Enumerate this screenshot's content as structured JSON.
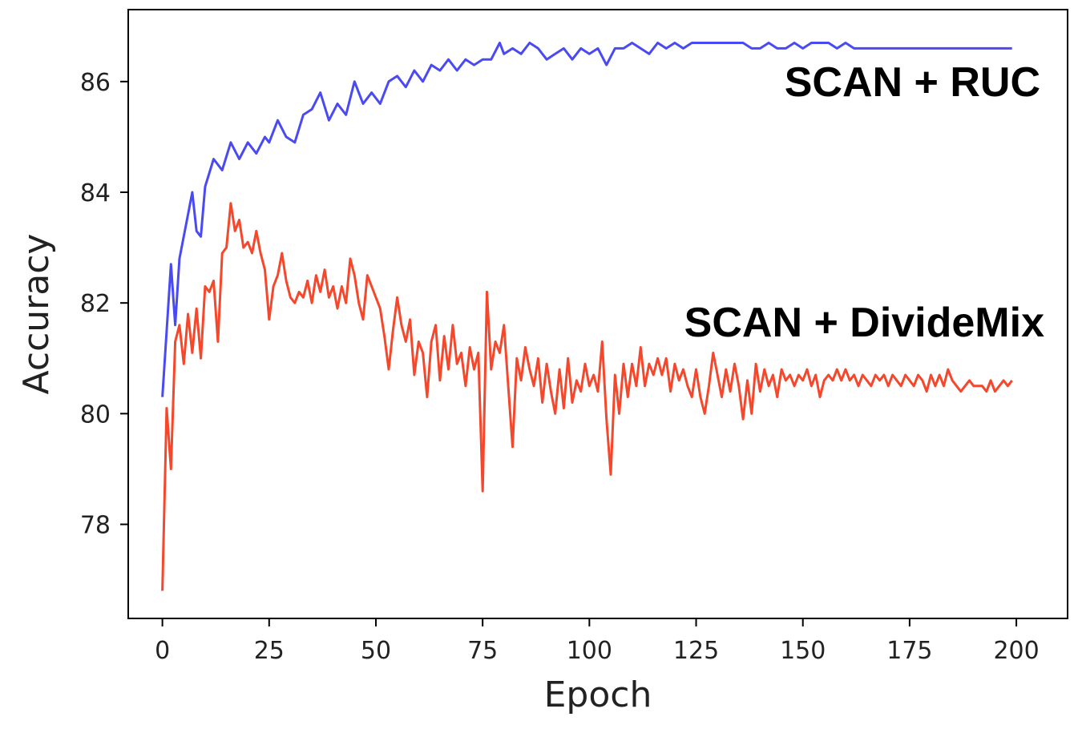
{
  "chart_data": {
    "type": "line",
    "title": "",
    "xlabel": "Epoch",
    "ylabel": "Accuracy",
    "xlim": [
      -8,
      212
    ],
    "ylim": [
      76.3,
      87.3
    ],
    "xticks": [
      0,
      25,
      50,
      75,
      100,
      125,
      150,
      175,
      200
    ],
    "yticks": [
      78,
      80,
      82,
      84,
      86
    ],
    "grid": false,
    "legend": "none",
    "series": [
      {
        "name": "SCAN + RUC",
        "color": "#4a4af5",
        "points": [
          [
            0,
            80.3
          ],
          [
            2,
            82.7
          ],
          [
            3,
            81.6
          ],
          [
            4,
            82.8
          ],
          [
            6,
            83.6
          ],
          [
            7,
            84.0
          ],
          [
            8,
            83.3
          ],
          [
            9,
            83.2
          ],
          [
            10,
            84.1
          ],
          [
            12,
            84.6
          ],
          [
            14,
            84.4
          ],
          [
            16,
            84.9
          ],
          [
            18,
            84.6
          ],
          [
            20,
            84.9
          ],
          [
            22,
            84.7
          ],
          [
            24,
            85.0
          ],
          [
            25,
            84.9
          ],
          [
            27,
            85.3
          ],
          [
            29,
            85.0
          ],
          [
            31,
            84.9
          ],
          [
            33,
            85.4
          ],
          [
            35,
            85.5
          ],
          [
            37,
            85.8
          ],
          [
            39,
            85.3
          ],
          [
            41,
            85.6
          ],
          [
            43,
            85.4
          ],
          [
            45,
            86.0
          ],
          [
            47,
            85.6
          ],
          [
            49,
            85.8
          ],
          [
            51,
            85.6
          ],
          [
            53,
            86.0
          ],
          [
            55,
            86.1
          ],
          [
            57,
            85.9
          ],
          [
            59,
            86.2
          ],
          [
            61,
            86.0
          ],
          [
            63,
            86.3
          ],
          [
            65,
            86.2
          ],
          [
            67,
            86.4
          ],
          [
            69,
            86.2
          ],
          [
            71,
            86.4
          ],
          [
            73,
            86.3
          ],
          [
            75,
            86.4
          ],
          [
            77,
            86.4
          ],
          [
            79,
            86.7
          ],
          [
            80,
            86.5
          ],
          [
            82,
            86.6
          ],
          [
            84,
            86.5
          ],
          [
            86,
            86.7
          ],
          [
            88,
            86.6
          ],
          [
            90,
            86.4
          ],
          [
            92,
            86.5
          ],
          [
            94,
            86.6
          ],
          [
            96,
            86.4
          ],
          [
            98,
            86.6
          ],
          [
            100,
            86.5
          ],
          [
            102,
            86.6
          ],
          [
            104,
            86.3
          ],
          [
            106,
            86.6
          ],
          [
            108,
            86.6
          ],
          [
            110,
            86.7
          ],
          [
            112,
            86.6
          ],
          [
            114,
            86.5
          ],
          [
            116,
            86.7
          ],
          [
            118,
            86.6
          ],
          [
            120,
            86.7
          ],
          [
            122,
            86.6
          ],
          [
            124,
            86.7
          ],
          [
            126,
            86.7
          ],
          [
            128,
            86.7
          ],
          [
            130,
            86.7
          ],
          [
            132,
            86.7
          ],
          [
            134,
            86.7
          ],
          [
            136,
            86.7
          ],
          [
            138,
            86.6
          ],
          [
            140,
            86.6
          ],
          [
            142,
            86.7
          ],
          [
            144,
            86.6
          ],
          [
            146,
            86.6
          ],
          [
            148,
            86.7
          ],
          [
            150,
            86.6
          ],
          [
            152,
            86.7
          ],
          [
            154,
            86.7
          ],
          [
            156,
            86.7
          ],
          [
            158,
            86.6
          ],
          [
            160,
            86.7
          ],
          [
            162,
            86.6
          ],
          [
            164,
            86.6
          ],
          [
            166,
            86.6
          ],
          [
            168,
            86.6
          ],
          [
            170,
            86.6
          ],
          [
            172,
            86.6
          ],
          [
            174,
            86.6
          ],
          [
            176,
            86.6
          ],
          [
            178,
            86.6
          ],
          [
            180,
            86.6
          ],
          [
            182,
            86.6
          ],
          [
            184,
            86.6
          ],
          [
            186,
            86.6
          ],
          [
            188,
            86.6
          ],
          [
            190,
            86.6
          ],
          [
            192,
            86.6
          ],
          [
            194,
            86.6
          ],
          [
            196,
            86.6
          ],
          [
            198,
            86.6
          ],
          [
            199,
            86.6
          ]
        ]
      },
      {
        "name": "SCAN + DivideMix",
        "color": "#f5472b",
        "points": [
          [
            0,
            76.8
          ],
          [
            1,
            80.1
          ],
          [
            2,
            79.0
          ],
          [
            3,
            81.3
          ],
          [
            4,
            81.6
          ],
          [
            5,
            80.9
          ],
          [
            6,
            81.8
          ],
          [
            7,
            81.1
          ],
          [
            8,
            81.9
          ],
          [
            9,
            81.0
          ],
          [
            10,
            82.3
          ],
          [
            11,
            82.2
          ],
          [
            12,
            82.4
          ],
          [
            13,
            81.3
          ],
          [
            14,
            82.9
          ],
          [
            15,
            83.0
          ],
          [
            16,
            83.8
          ],
          [
            17,
            83.3
          ],
          [
            18,
            83.5
          ],
          [
            19,
            83.0
          ],
          [
            20,
            83.1
          ],
          [
            21,
            82.9
          ],
          [
            22,
            83.3
          ],
          [
            23,
            82.9
          ],
          [
            24,
            82.6
          ],
          [
            25,
            81.7
          ],
          [
            26,
            82.3
          ],
          [
            27,
            82.5
          ],
          [
            28,
            82.9
          ],
          [
            29,
            82.4
          ],
          [
            30,
            82.1
          ],
          [
            31,
            82.0
          ],
          [
            32,
            82.2
          ],
          [
            33,
            82.1
          ],
          [
            34,
            82.4
          ],
          [
            35,
            82.0
          ],
          [
            36,
            82.5
          ],
          [
            37,
            82.2
          ],
          [
            38,
            82.6
          ],
          [
            39,
            82.1
          ],
          [
            40,
            82.3
          ],
          [
            41,
            81.9
          ],
          [
            42,
            82.3
          ],
          [
            43,
            82.0
          ],
          [
            44,
            82.8
          ],
          [
            45,
            82.5
          ],
          [
            46,
            82.0
          ],
          [
            47,
            81.7
          ],
          [
            48,
            82.5
          ],
          [
            49,
            82.3
          ],
          [
            50,
            82.1
          ],
          [
            51,
            81.9
          ],
          [
            52,
            81.4
          ],
          [
            53,
            80.8
          ],
          [
            54,
            81.5
          ],
          [
            55,
            82.1
          ],
          [
            56,
            81.6
          ],
          [
            57,
            81.3
          ],
          [
            58,
            81.7
          ],
          [
            59,
            80.7
          ],
          [
            60,
            81.3
          ],
          [
            61,
            81.1
          ],
          [
            62,
            80.3
          ],
          [
            63,
            81.3
          ],
          [
            64,
            81.6
          ],
          [
            65,
            80.6
          ],
          [
            66,
            81.4
          ],
          [
            67,
            80.8
          ],
          [
            68,
            81.6
          ],
          [
            69,
            80.9
          ],
          [
            70,
            81.1
          ],
          [
            71,
            80.5
          ],
          [
            72,
            81.2
          ],
          [
            73,
            80.8
          ],
          [
            74,
            81.1
          ],
          [
            75,
            78.6
          ],
          [
            76,
            82.2
          ],
          [
            77,
            80.8
          ],
          [
            78,
            81.3
          ],
          [
            79,
            81.1
          ],
          [
            80,
            81.6
          ],
          [
            81,
            80.5
          ],
          [
            82,
            79.4
          ],
          [
            83,
            81.0
          ],
          [
            84,
            80.6
          ],
          [
            85,
            81.2
          ],
          [
            86,
            80.8
          ],
          [
            87,
            80.5
          ],
          [
            88,
            81.0
          ],
          [
            89,
            80.2
          ],
          [
            90,
            80.9
          ],
          [
            91,
            80.4
          ],
          [
            92,
            80.0
          ],
          [
            93,
            80.8
          ],
          [
            94,
            80.1
          ],
          [
            95,
            81.0
          ],
          [
            96,
            80.2
          ],
          [
            97,
            80.6
          ],
          [
            98,
            80.4
          ],
          [
            99,
            80.9
          ],
          [
            100,
            80.5
          ],
          [
            101,
            80.7
          ],
          [
            102,
            80.4
          ],
          [
            103,
            81.3
          ],
          [
            104,
            79.9
          ],
          [
            105,
            78.9
          ],
          [
            106,
            80.7
          ],
          [
            107,
            80.0
          ],
          [
            108,
            80.9
          ],
          [
            109,
            80.3
          ],
          [
            110,
            80.9
          ],
          [
            111,
            80.5
          ],
          [
            112,
            81.2
          ],
          [
            113,
            80.5
          ],
          [
            114,
            80.9
          ],
          [
            115,
            80.7
          ],
          [
            116,
            81.0
          ],
          [
            117,
            80.7
          ],
          [
            118,
            81.0
          ],
          [
            119,
            80.4
          ],
          [
            120,
            80.9
          ],
          [
            121,
            80.6
          ],
          [
            122,
            80.8
          ],
          [
            123,
            80.5
          ],
          [
            124,
            80.3
          ],
          [
            125,
            80.8
          ],
          [
            126,
            80.3
          ],
          [
            127,
            80.0
          ],
          [
            128,
            80.5
          ],
          [
            129,
            81.1
          ],
          [
            130,
            80.7
          ],
          [
            131,
            80.3
          ],
          [
            132,
            80.8
          ],
          [
            133,
            80.4
          ],
          [
            134,
            80.9
          ],
          [
            135,
            80.5
          ],
          [
            136,
            79.9
          ],
          [
            137,
            80.6
          ],
          [
            138,
            80.0
          ],
          [
            139,
            80.9
          ],
          [
            140,
            80.4
          ],
          [
            141,
            80.8
          ],
          [
            142,
            80.5
          ],
          [
            143,
            80.7
          ],
          [
            144,
            80.3
          ],
          [
            145,
            80.8
          ],
          [
            146,
            80.6
          ],
          [
            147,
            80.7
          ],
          [
            148,
            80.5
          ],
          [
            149,
            80.7
          ],
          [
            150,
            80.6
          ],
          [
            151,
            80.8
          ],
          [
            152,
            80.5
          ],
          [
            153,
            80.7
          ],
          [
            154,
            80.3
          ],
          [
            155,
            80.6
          ],
          [
            156,
            80.7
          ],
          [
            157,
            80.6
          ],
          [
            158,
            80.8
          ],
          [
            159,
            80.6
          ],
          [
            160,
            80.8
          ],
          [
            161,
            80.6
          ],
          [
            162,
            80.7
          ],
          [
            163,
            80.5
          ],
          [
            164,
            80.7
          ],
          [
            165,
            80.6
          ],
          [
            166,
            80.5
          ],
          [
            167,
            80.7
          ],
          [
            168,
            80.6
          ],
          [
            169,
            80.7
          ],
          [
            170,
            80.5
          ],
          [
            171,
            80.7
          ],
          [
            172,
            80.6
          ],
          [
            173,
            80.5
          ],
          [
            174,
            80.7
          ],
          [
            175,
            80.6
          ],
          [
            176,
            80.5
          ],
          [
            177,
            80.7
          ],
          [
            178,
            80.6
          ],
          [
            179,
            80.4
          ],
          [
            180,
            80.7
          ],
          [
            181,
            80.5
          ],
          [
            182,
            80.7
          ],
          [
            183,
            80.5
          ],
          [
            184,
            80.8
          ],
          [
            185,
            80.6
          ],
          [
            186,
            80.5
          ],
          [
            187,
            80.4
          ],
          [
            188,
            80.5
          ],
          [
            189,
            80.6
          ],
          [
            190,
            80.5
          ],
          [
            191,
            80.5
          ],
          [
            192,
            80.5
          ],
          [
            193,
            80.4
          ],
          [
            194,
            80.6
          ],
          [
            195,
            80.4
          ],
          [
            196,
            80.5
          ],
          [
            197,
            80.6
          ],
          [
            198,
            80.5
          ],
          [
            199,
            80.6
          ]
        ]
      }
    ],
    "annotations": [
      {
        "text": "SCAN + RUC",
        "series": 0
      },
      {
        "text": "SCAN + DivideMix",
        "series": 1
      }
    ]
  }
}
